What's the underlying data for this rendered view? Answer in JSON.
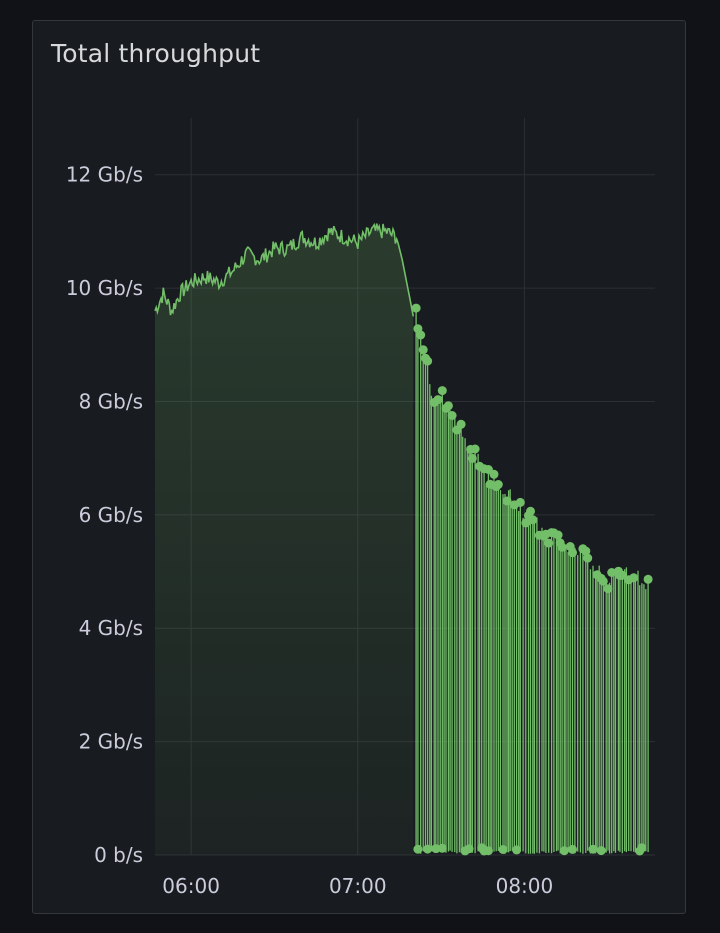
{
  "panel": {
    "title": "Total throughput"
  },
  "chart_data": {
    "type": "line",
    "title": "Total throughput",
    "xlabel": "",
    "ylabel": "",
    "y_ticks": [
      "0 b/s",
      "2 Gb/s",
      "4 Gb/s",
      "6 Gb/s",
      "8 Gb/s",
      "10 Gb/s",
      "12 Gb/s"
    ],
    "y_tick_values": [
      0,
      2,
      4,
      6,
      8,
      10,
      12
    ],
    "x_ticks": [
      "06:00",
      "07:00",
      "08:00"
    ],
    "ylim": [
      0,
      13
    ],
    "x_range": [
      "05:47",
      "08:47"
    ],
    "grid": true,
    "legend": "none",
    "series": [
      {
        "unit": "Gb/s",
        "color": "#73bf69",
        "fill": "gradient",
        "points": [
          [
            "05:47",
            9.6
          ],
          [
            "05:50",
            9.9
          ],
          [
            "05:53",
            9.6
          ],
          [
            "05:56",
            9.9
          ],
          [
            "06:00",
            10.1
          ],
          [
            "06:05",
            10.2
          ],
          [
            "06:10",
            10.1
          ],
          [
            "06:15",
            10.3
          ],
          [
            "06:20",
            10.6
          ],
          [
            "06:25",
            10.5
          ],
          [
            "06:30",
            10.7
          ],
          [
            "06:35",
            10.7
          ],
          [
            "06:40",
            10.9
          ],
          [
            "06:45",
            10.8
          ],
          [
            "06:50",
            11.0
          ],
          [
            "06:55",
            10.9
          ],
          [
            "07:00",
            10.8
          ],
          [
            "07:05",
            11.0
          ],
          [
            "07:10",
            11.0
          ],
          [
            "07:14",
            10.9
          ],
          [
            "07:16",
            10.5
          ],
          [
            "07:18",
            10.0
          ],
          [
            "07:20",
            9.5
          ]
        ],
        "spikes_from": "07:20",
        "spike_upper_points": [
          [
            "07:21",
            9.5
          ],
          [
            "07:22",
            9.3
          ],
          [
            "07:24",
            8.9
          ],
          [
            "07:27",
            8.1
          ],
          [
            "07:30",
            8.1
          ],
          [
            "07:33",
            7.8
          ],
          [
            "07:36",
            7.6
          ],
          [
            "07:40",
            7.2
          ],
          [
            "07:43",
            7.0
          ],
          [
            "07:46",
            6.7
          ],
          [
            "07:49",
            6.6
          ],
          [
            "07:52",
            6.5
          ],
          [
            "07:55",
            6.3
          ],
          [
            "07:58",
            6.1
          ],
          [
            "08:00",
            6.0
          ],
          [
            "08:05",
            5.8
          ],
          [
            "08:10",
            5.6
          ],
          [
            "08:15",
            5.5
          ],
          [
            "08:20",
            5.3
          ],
          [
            "08:25",
            5.1
          ],
          [
            "08:30",
            4.8
          ],
          [
            "08:35",
            5.0
          ],
          [
            "08:40",
            4.9
          ],
          [
            "08:45",
            4.8
          ]
        ]
      }
    ]
  }
}
